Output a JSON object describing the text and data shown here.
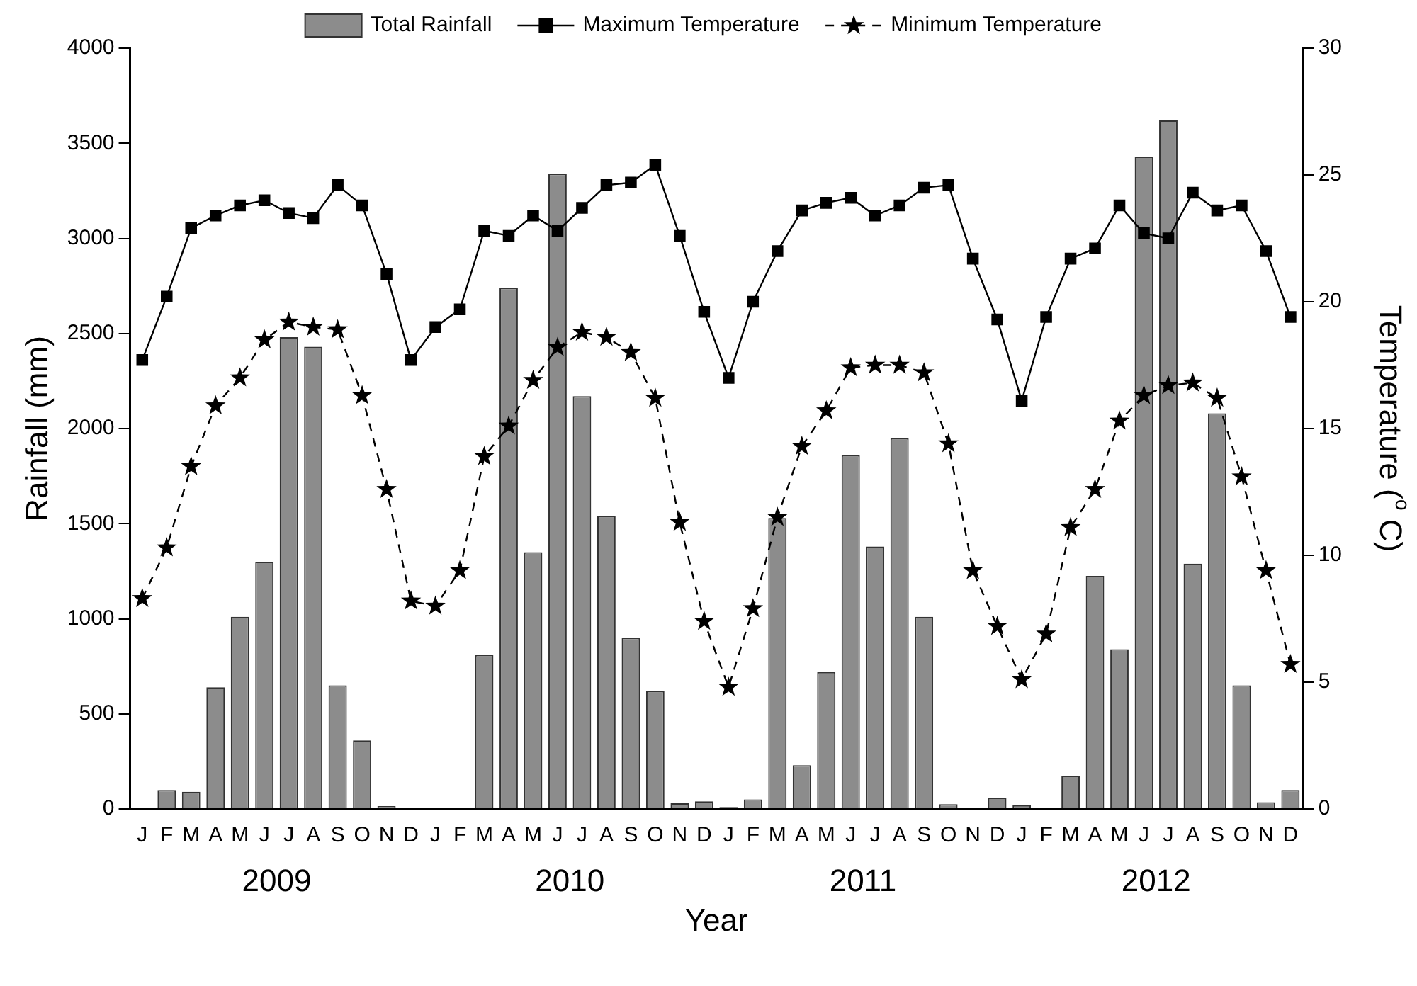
{
  "chart_data": {
    "type": "bar",
    "categories": [
      "J",
      "F",
      "M",
      "A",
      "M",
      "J",
      "J",
      "A",
      "S",
      "O",
      "N",
      "D",
      "J",
      "F",
      "M",
      "A",
      "M",
      "J",
      "J",
      "A",
      "S",
      "O",
      "N",
      "D",
      "J",
      "F",
      "M",
      "A",
      "M",
      "J",
      "J",
      "A",
      "S",
      "O",
      "N",
      "D",
      "J",
      "F",
      "M",
      "A",
      "M",
      "J",
      "J",
      "A",
      "S",
      "O",
      "N",
      "D"
    ],
    "series": [
      {
        "name": "Total Rainfall",
        "color": "#8c8c8c",
        "values": [
          0,
          100,
          90,
          640,
          1010,
          1300,
          2480,
          2430,
          650,
          360,
          15,
          0,
          0,
          0,
          810,
          2740,
          1350,
          3340,
          2170,
          1540,
          900,
          620,
          30,
          40,
          10,
          50,
          1530,
          230,
          720,
          1860,
          1380,
          1950,
          1010,
          25,
          0,
          60,
          20,
          0,
          175,
          1225,
          840,
          3430,
          3620,
          1290,
          2080,
          650,
          35,
          100
        ]
      },
      {
        "name": "Maximum Temperature",
        "type": "line",
        "axis": "y2",
        "color": "#000000",
        "marker": "square",
        "line_style": "solid",
        "values": [
          17.7,
          20.2,
          22.9,
          23.4,
          23.8,
          24.0,
          23.5,
          23.3,
          24.6,
          23.8,
          21.1,
          17.7,
          19.0,
          19.7,
          22.8,
          22.6,
          23.4,
          22.8,
          23.7,
          24.6,
          24.7,
          25.4,
          22.6,
          19.6,
          17.0,
          20.0,
          22.0,
          23.6,
          23.9,
          24.1,
          23.4,
          23.8,
          24.5,
          24.6,
          21.7,
          19.3,
          16.1,
          19.4,
          21.7,
          22.1,
          23.8,
          22.7,
          22.5,
          24.3,
          23.6,
          23.8,
          22.0,
          19.4
        ]
      },
      {
        "name": "Minimum Temperature",
        "type": "line",
        "axis": "y2",
        "color": "#000000",
        "marker": "star",
        "line_style": "dashed",
        "values": [
          8.3,
          10.3,
          13.5,
          15.9,
          17.0,
          18.5,
          19.2,
          19.0,
          18.9,
          16.3,
          12.6,
          8.2,
          8.0,
          9.4,
          13.9,
          15.1,
          16.9,
          18.2,
          18.8,
          18.6,
          18.0,
          16.2,
          11.3,
          7.4,
          4.8,
          7.9,
          11.5,
          14.3,
          15.7,
          17.4,
          17.5,
          17.5,
          17.2,
          14.4,
          9.4,
          7.2,
          5.1,
          6.9,
          11.1,
          12.6,
          15.3,
          16.3,
          16.7,
          16.8,
          16.2,
          13.1,
          9.4,
          5.7
        ]
      }
    ],
    "ylim": [
      0,
      4000
    ],
    "yticks": [
      0,
      500,
      1000,
      1500,
      2000,
      2500,
      3000,
      3500,
      4000
    ],
    "y2lim": [
      0,
      30
    ],
    "y2ticks": [
      0,
      5,
      10,
      15,
      20,
      25,
      30
    ],
    "ylabel": "Rainfall (mm)",
    "y2label": "Temperature ($^{o}$ C)",
    "xlabel": "Year",
    "annotations": [
      "2009",
      "2010",
      "2011",
      "2012"
    ],
    "legend": "top",
    "grid": false
  }
}
